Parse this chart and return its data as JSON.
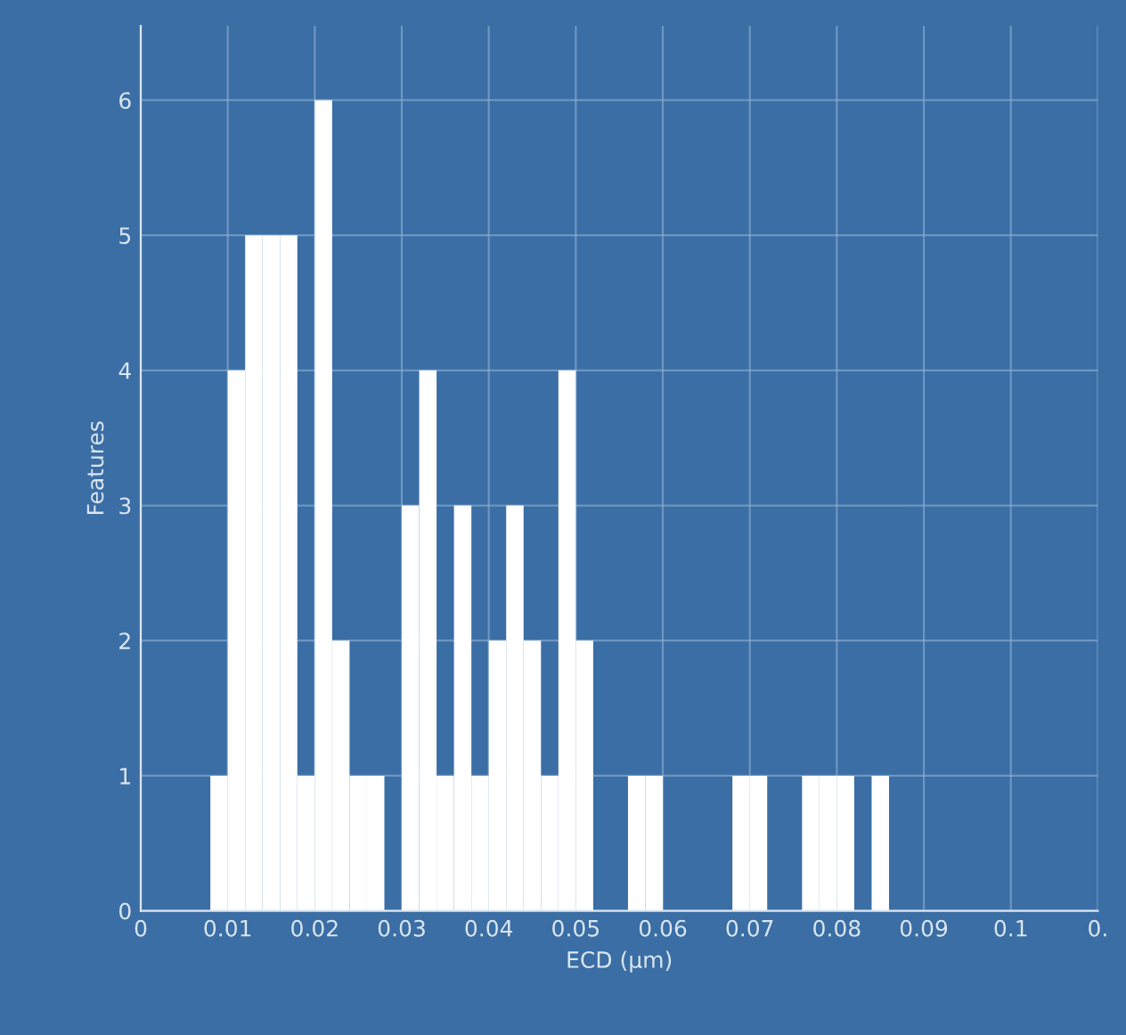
{
  "chart_data": {
    "type": "histogram",
    "xlabel": "ECD (µm)",
    "ylabel": "Features",
    "color": "#ffffff",
    "bins": [
      0.008,
      0.01,
      0.012,
      0.014,
      0.016,
      0.018,
      0.02,
      0.022,
      0.024,
      0.026,
      0.028,
      0.03,
      0.032,
      0.034,
      0.036,
      0.038,
      0.04,
      0.042,
      0.044,
      0.046,
      0.048,
      0.05,
      0.052,
      0.054,
      0.056,
      0.058,
      0.06,
      0.062,
      0.064,
      0.066,
      0.068,
      0.07,
      0.072,
      0.074,
      0.076,
      0.078,
      0.08,
      0.082,
      0.084,
      0.086
    ],
    "values": [
      1,
      4,
      5,
      5,
      5,
      1,
      6,
      2,
      1,
      1,
      0,
      3,
      4,
      1,
      3,
      1,
      2,
      3,
      2,
      1,
      4,
      2,
      0,
      0,
      1,
      1,
      0,
      0,
      0,
      0,
      1,
      1,
      0,
      0,
      1,
      1,
      1,
      0,
      1
    ],
    "xlim": [
      0,
      0.11
    ],
    "xticks": [
      0,
      0.01,
      0.02,
      0.03,
      0.04,
      0.05,
      0.06,
      0.07,
      0.08,
      0.09,
      0.1,
      {
        "value": 0.11,
        "label": "0."
      }
    ],
    "ylim": [
      0,
      6.55
    ],
    "yticks": [
      0,
      1,
      2,
      3,
      4,
      5,
      6
    ],
    "grid": true
  }
}
